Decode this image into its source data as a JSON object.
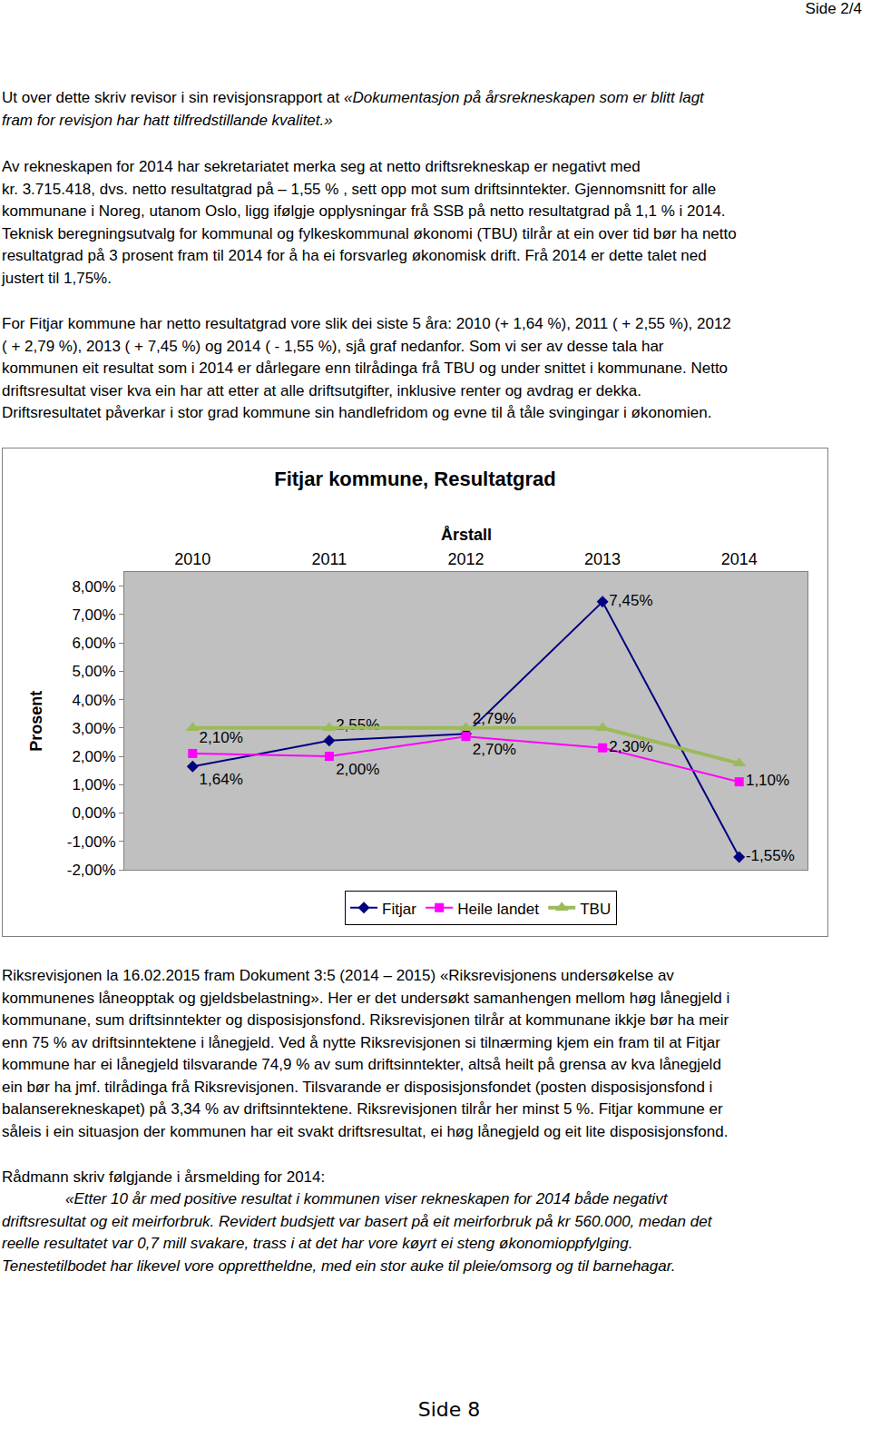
{
  "document": {
    "header": "Side 2/4",
    "paragraphs": [
      {
        "lines": [
          [
            "Ut over dette skriv revisor i sin revisjonsrapport at ",
            {
              "text": "«Dokumentasjon på årsrekneskapen som er blitt lagt",
              "italic": true
            }
          ],
          [
            {
              "text": "fram for revisjon har hatt tilfredstillande kvalitet.»",
              "italic": true
            }
          ]
        ]
      },
      {
        "lines": [
          "Av rekneskapen for 2014 har sekretariatet merka seg at netto driftsrekneskap er negativt med",
          "kr. 3.715.418, dvs. netto resultatgrad på – 1,55 % , sett opp mot sum driftsinntekter. Gjennomsnitt for alle",
          "kommunane i Noreg, utanom Oslo, ligg ifølgje opplysningar frå SSB på netto resultatgrad på 1,1 % i 2014.",
          "Teknisk beregningsutvalg for kommunal og fylkeskommunal økonomi (TBU) tilrår at ein over tid bør ha netto",
          "resultatgrad på 3 prosent fram til 2014 for å ha ei forsvarleg økonomisk drift. Frå 2014 er dette talet ned",
          "justert til 1,75%."
        ]
      },
      {
        "lines": [
          "For Fitjar kommune har netto resultatgrad vore slik dei siste 5 åra: 2010 (+ 1,64 %), 2011 ( + 2,55 %), 2012",
          "( + 2,79 %), 2013 ( + 7,45 %) og 2014 ( - 1,55 %), sjå graf nedanfor. Som vi ser av desse tala har",
          "kommunen eit resultat som i 2014 er dårlegare enn tilrådinga frå TBU og under snittet i kommunane. Netto",
          "driftsresultat viser kva ein har att etter at alle driftsutgifter, inklusive renter og avdrag er dekka.",
          "Driftsresultatet påverkar i stor grad kommune sin handlefridom og evne til å tåle svingingar i økonomien."
        ]
      },
      {
        "lines": [
          "Riksrevisjonen la 16.02.2015 fram Dokument 3:5 (2014 – 2015) «Riksrevisjonens undersøkelse av",
          "kommunenes låneopptak og gjeldsbelastning». Her er det undersøkt samanhengen mellom høg lånegjeld i",
          "kommunane, sum driftsinntekter og disposisjonsfond. Riksrevisjonen tilrår at kommunane ikkje bør ha meir",
          "enn 75 % av driftsinntektene i lånegjeld. Ved å nytte Riksrevisjonen si tilnærming kjem ein fram til at Fitjar",
          "kommune har ei lånegjeld tilsvarande 74,9 % av sum driftsinntekter, altså heilt på grensa av kva lånegjeld",
          "ein bør ha jmf. tilrådinga frå Riksrevisjonen. Tilsvarande er disposisjonsfondet (posten disposisjonsfond i",
          "balanserekneskapet) på 3,34 % av driftsinntektene. Riksrevisjonen tilrår her minst 5 %. Fitjar kommune er",
          "såleis i ein situasjon der kommunen har eit svakt driftsresultat, ei høg lånegjeld og eit lite disposisjonsfond."
        ]
      },
      {
        "lines": [
          "Rådmann skriv følgjande i årsmelding for 2014:"
        ]
      },
      {
        "style": "quote",
        "lines": [
          [
            {
              "text": "«Etter 10 år med positive resultat i kommunen viser rekneskapen for 2014 både negativt",
              "italic": true
            }
          ],
          [
            {
              "text": "driftsresultat og eit meirforbruk. Revidert budsjett var basert på eit meirforbruk på kr 560.000, medan det",
              "italic": true
            }
          ],
          [
            {
              "text": "reelle resultatet var 0,7 mill svakare, trass i at det har vore køyrt ei steng økonomioppfylging.",
              "italic": true
            }
          ],
          [
            {
              "text": "Tenestetilbodet har likevel vore opprettheldne, med ein stor auke til pleie/omsorg og til barnehagar.",
              "italic": true
            }
          ]
        ]
      }
    ],
    "footer": "Side 8"
  },
  "chart_data": {
    "type": "line",
    "title": "Fitjar kommune, Resultatgrad",
    "x_label": "Årstall",
    "y_label": "Prosent",
    "categories": [
      "2010",
      "2011",
      "2012",
      "2013",
      "2014"
    ],
    "series": [
      {
        "name": "Fitjar",
        "color": "#000080",
        "marker": "diamond",
        "line_style": "solid",
        "values": [
          1.64,
          2.55,
          2.79,
          7.45,
          -1.55
        ],
        "value_labels": [
          "1,64%",
          "2,55%",
          "2,79%",
          "7,45%",
          "-1,55%"
        ]
      },
      {
        "name": "Heile landet",
        "color": "#ff00ff",
        "marker": "square",
        "line_style": "solid",
        "values": [
          2.1,
          2.0,
          2.7,
          2.3,
          1.1
        ],
        "value_labels": [
          "2,10%",
          "2,00%",
          "2,70%",
          "2,30%",
          "1,10%"
        ]
      },
      {
        "name": "TBU",
        "color": "#9bbb59",
        "marker": "triangle-up",
        "line_style": "solid",
        "values": [
          3,
          3,
          3,
          3,
          1.75
        ]
      }
    ],
    "ylim": [
      -2,
      8.5
    ],
    "yticks": [
      {
        "value": -2,
        "label": "-2,00%"
      },
      {
        "value": -1,
        "label": "-1,00%"
      },
      {
        "value": 0,
        "label": "0,00%"
      },
      {
        "value": 1,
        "label": "1,00%"
      },
      {
        "value": 2,
        "label": "2,00%"
      },
      {
        "value": 3,
        "label": "3,00%"
      },
      {
        "value": 4,
        "label": "4,00%"
      },
      {
        "value": 5,
        "label": "5,00%"
      },
      {
        "value": 6,
        "label": "6,00%"
      },
      {
        "value": 7,
        "label": "7,00%"
      },
      {
        "value": 8,
        "label": "8,00%"
      }
    ],
    "grid": false,
    "legend": "bottom",
    "data_labels": true
  }
}
